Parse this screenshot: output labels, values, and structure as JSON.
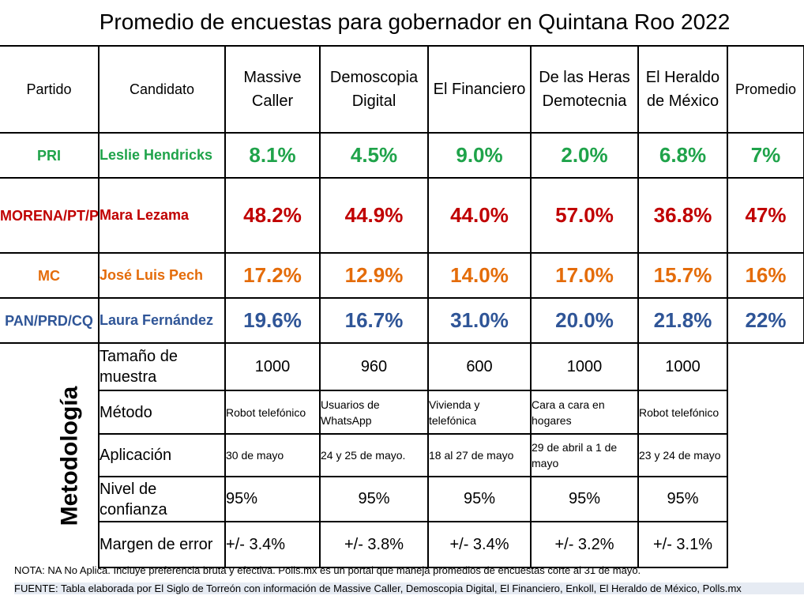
{
  "title": "Promedio de encuestas para gobernador en Quintana Roo 2022",
  "headers": [
    "Partido",
    "Candidato",
    "Massive Caller",
    "Demoscopia Digital",
    "El Financiero",
    "De las Heras Demotecnia",
    "El Heraldo de México",
    "Promedio"
  ],
  "rows": [
    {
      "party": "PRI",
      "candidate": "Leslie Hendricks",
      "values": [
        "8.1%",
        "4.5%",
        "9.0%",
        "2.0%",
        "6.8%"
      ],
      "average": "7%",
      "color": "#1fa34a"
    },
    {
      "party": "MORENA/PT/PVEM",
      "candidate": "Mara Lezama",
      "values": [
        "48.2%",
        "44.9%",
        "44.0%",
        "57.0%",
        "36.8%"
      ],
      "average": "47%",
      "color": "#c00000"
    },
    {
      "party": "MC",
      "candidate": "José Luis Pech",
      "values": [
        "17.2%",
        "12.9%",
        "14.0%",
        "17.0%",
        "15.7%"
      ],
      "average": "16%",
      "color": "#e46c0a"
    },
    {
      "party": "PAN/PRD/CQ",
      "candidate": "Laura Fernández",
      "values": [
        "19.6%",
        "16.7%",
        "31.0%",
        "20.0%",
        "21.8%"
      ],
      "average": "22%",
      "color": "#2f5597"
    }
  ],
  "methodology": {
    "label": "Metodología",
    "rows": [
      {
        "label": "Tamaño de muestra",
        "values": [
          "1000",
          "960",
          "600",
          "1000",
          "1000"
        ]
      },
      {
        "label": "Método",
        "values": [
          "Robot telefónico",
          "Usuarios de WhatsApp",
          "Vivienda y telefónica",
          "Cara a cara en hogares",
          "Robot telefónico"
        ]
      },
      {
        "label": "Aplicación",
        "values": [
          "30 de mayo",
          "24 y 25 de mayo.",
          "18 al 27 de mayo",
          "29 de abril a 1 de mayo",
          "23 y 24 de mayo"
        ]
      },
      {
        "label": "Nivel de confianza",
        "values": [
          "95%",
          "95%",
          "95%",
          "95%",
          "95%"
        ]
      },
      {
        "label": "Margen de error",
        "values": [
          "+/- 3.4%",
          "+/- 3.8%",
          "+/- 3.4%",
          "+/- 3.2%",
          "+/- 3.1%"
        ]
      }
    ]
  },
  "note": "NOTA: NA No Aplica. Incluye preferencia bruta y efectiva. Polls.mx es un portal que maneja promedios de encuestas corte al 31 de mayo.",
  "source": "FUENTE: Tabla elaborada por El Siglo de Torreón con información de Massive Caller, Demoscopia Digital, El Financiero, Enkoll, El Heraldo de México, Polls.mx"
}
